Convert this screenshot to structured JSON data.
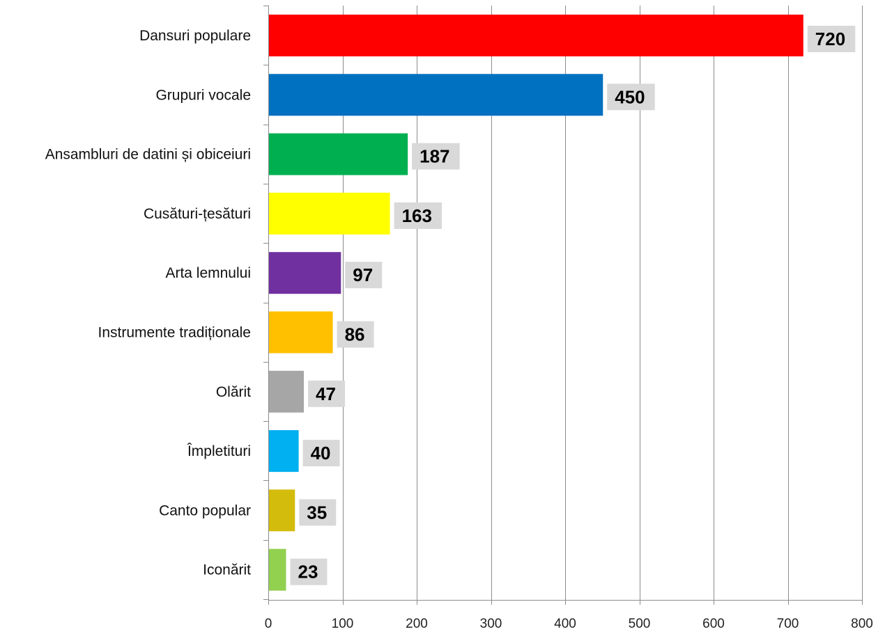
{
  "chart_data": {
    "type": "bar",
    "orientation": "horizontal",
    "title": "",
    "xlabel": "",
    "ylabel": "",
    "categories": [
      "Dansuri populare",
      "Grupuri vocale",
      "Ansambluri de datini și obiceiuri",
      "Cusături-țesături",
      "Arta lemnului",
      "Instrumente tradiționale",
      "Olărit",
      "Împletituri",
      "Canto popular",
      "Iconărit"
    ],
    "values": [
      720,
      450,
      187,
      163,
      97,
      86,
      47,
      40,
      35,
      23
    ],
    "bar_colors": [
      "#ff0000",
      "#0070c0",
      "#00b050",
      "#ffff00",
      "#7030a0",
      "#ffc000",
      "#a6a6a6",
      "#00b0f0",
      "#d4bc0c",
      "#92d050"
    ],
    "value_label_background": "#d9d9d9",
    "xlim": [
      0,
      800
    ],
    "x_ticks": [
      0,
      100,
      200,
      300,
      400,
      500,
      600,
      700,
      800
    ],
    "x_tick_labels": [
      "0",
      "100",
      "200",
      "300",
      "400",
      "500",
      "600",
      "700",
      "800"
    ],
    "grid": true,
    "legend": "none",
    "data_labels": true
  }
}
